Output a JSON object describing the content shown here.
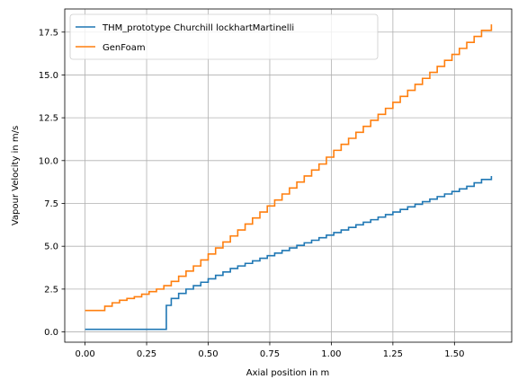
{
  "chart_data": {
    "type": "line",
    "step": true,
    "xlabel": "Axial position in m",
    "ylabel": "Vapour Velocity in m/s",
    "xlim": [
      -0.0825,
      1.7325
    ],
    "ylim": [
      -0.6,
      18.85
    ],
    "xticks": [
      0.0,
      0.25,
      0.5,
      0.75,
      1.0,
      1.25,
      1.5
    ],
    "xtick_labels": [
      "0.00",
      "0.25",
      "0.50",
      "0.75",
      "1.00",
      "1.25",
      "1.50"
    ],
    "yticks": [
      0.0,
      2.5,
      5.0,
      7.5,
      10.0,
      12.5,
      15.0,
      17.5
    ],
    "ytick_labels": [
      "0.0",
      "2.5",
      "5.0",
      "7.5",
      "10.0",
      "12.5",
      "15.0",
      "17.5"
    ],
    "grid": true,
    "legend_position": "upper-left",
    "series": [
      {
        "name": "THM_prototype Churchill lockhartMartinelli",
        "color": "#1f77b4",
        "x": [
          0.0,
          0.33,
          0.33,
          0.35,
          0.38,
          0.41,
          0.44,
          0.47,
          0.5,
          0.53,
          0.56,
          0.59,
          0.62,
          0.65,
          0.68,
          0.71,
          0.74,
          0.77,
          0.8,
          0.83,
          0.86,
          0.89,
          0.92,
          0.95,
          0.98,
          1.01,
          1.04,
          1.07,
          1.1,
          1.13,
          1.16,
          1.19,
          1.22,
          1.25,
          1.28,
          1.31,
          1.34,
          1.37,
          1.4,
          1.43,
          1.46,
          1.49,
          1.52,
          1.55,
          1.58,
          1.61,
          1.65
        ],
        "y": [
          0.15,
          0.15,
          1.55,
          1.95,
          2.25,
          2.5,
          2.7,
          2.9,
          3.1,
          3.3,
          3.5,
          3.7,
          3.85,
          4.0,
          4.15,
          4.3,
          4.45,
          4.6,
          4.75,
          4.9,
          5.05,
          5.2,
          5.35,
          5.5,
          5.65,
          5.8,
          5.95,
          6.1,
          6.25,
          6.4,
          6.55,
          6.7,
          6.85,
          7.0,
          7.15,
          7.3,
          7.45,
          7.6,
          7.75,
          7.9,
          8.05,
          8.2,
          8.35,
          8.5,
          8.7,
          8.9,
          9.1
        ]
      },
      {
        "name": "GenFoam",
        "color": "#ff7f0e",
        "x": [
          0.0,
          0.08,
          0.11,
          0.14,
          0.17,
          0.2,
          0.23,
          0.26,
          0.29,
          0.32,
          0.35,
          0.38,
          0.41,
          0.44,
          0.47,
          0.5,
          0.53,
          0.56,
          0.59,
          0.62,
          0.65,
          0.68,
          0.71,
          0.74,
          0.77,
          0.8,
          0.83,
          0.86,
          0.89,
          0.92,
          0.95,
          0.98,
          1.01,
          1.04,
          1.07,
          1.1,
          1.13,
          1.16,
          1.19,
          1.22,
          1.25,
          1.28,
          1.31,
          1.34,
          1.37,
          1.4,
          1.43,
          1.46,
          1.49,
          1.52,
          1.55,
          1.58,
          1.61,
          1.65
        ],
        "y": [
          1.25,
          1.5,
          1.7,
          1.85,
          1.95,
          2.05,
          2.2,
          2.35,
          2.5,
          2.7,
          2.95,
          3.25,
          3.55,
          3.85,
          4.2,
          4.55,
          4.9,
          5.25,
          5.6,
          5.95,
          6.3,
          6.65,
          7.0,
          7.35,
          7.7,
          8.05,
          8.4,
          8.75,
          9.1,
          9.45,
          9.8,
          10.2,
          10.6,
          10.95,
          11.3,
          11.65,
          12.0,
          12.35,
          12.7,
          13.05,
          13.4,
          13.75,
          14.1,
          14.45,
          14.8,
          15.15,
          15.5,
          15.85,
          16.2,
          16.55,
          16.9,
          17.25,
          17.6,
          17.95
        ]
      }
    ]
  }
}
